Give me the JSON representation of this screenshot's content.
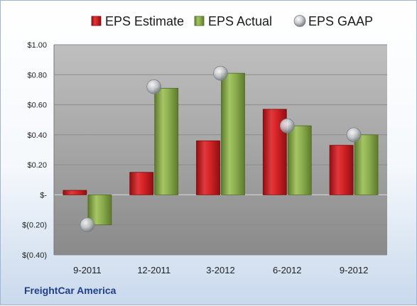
{
  "chart_data": {
    "type": "bar",
    "categories": [
      "9-2011",
      "12-2011",
      "3-2012",
      "6-2012",
      "9-2012"
    ],
    "series": [
      {
        "name": "EPS Estimate",
        "type": "bar",
        "color": "#cc1f23",
        "values": [
          0.03,
          0.15,
          0.36,
          0.57,
          0.33
        ]
      },
      {
        "name": "EPS Actual",
        "type": "bar",
        "color": "#8cae4f",
        "values": [
          -0.2,
          0.71,
          0.81,
          0.46,
          0.4
        ]
      },
      {
        "name": "EPS GAAP",
        "type": "scatter",
        "color": "#b9bcc2",
        "values": [
          -0.2,
          0.72,
          0.81,
          0.46,
          0.4
        ]
      }
    ],
    "ylim": [
      -0.4,
      1.0
    ],
    "yticks": [
      1.0,
      0.8,
      0.6,
      0.4,
      0.2,
      0,
      -0.2,
      -0.4
    ],
    "ytick_labels": [
      "$1.00",
      "$0.80",
      "$0.60",
      "$0.40",
      "$0.20",
      "$-",
      "$(0.20)",
      "$(0.40)"
    ],
    "legend_position": "top",
    "grid": true,
    "xlabel": "",
    "ylabel": ""
  },
  "watermark": "FreightCar America"
}
